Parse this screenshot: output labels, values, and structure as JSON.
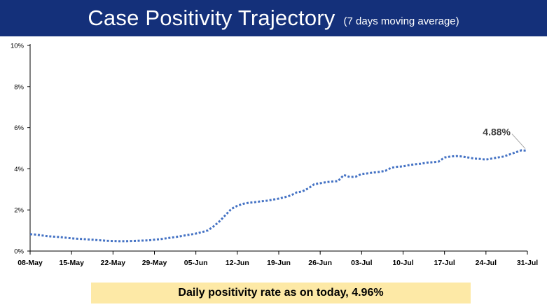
{
  "header": {
    "title": "Case Positivity Trajectory",
    "subtitle": "(7 days moving average)",
    "background_color": "#14307a"
  },
  "footer": {
    "banner_text": "Daily positivity rate as on today, 4.96%",
    "banner_color": "#fde9a6"
  },
  "chart_data": {
    "type": "line",
    "title": "Case Positivity Trajectory",
    "subtitle": "(7 days moving average)",
    "xlabel": "",
    "ylabel": "",
    "ylim": [
      0,
      10
    ],
    "y_ticks": [
      0,
      2,
      4,
      6,
      8,
      10
    ],
    "y_tick_labels": [
      "0%",
      "2%",
      "4%",
      "6%",
      "8%",
      "10%"
    ],
    "x_tick_labels": [
      "08-May",
      "15-May",
      "22-May",
      "29-May",
      "05-Jun",
      "12-Jun",
      "19-Jun",
      "26-Jun",
      "03-Jul",
      "10-Jul",
      "17-Jul",
      "24-Jul",
      "31-Jul"
    ],
    "x_tick_days": [
      0,
      7,
      14,
      21,
      28,
      35,
      42,
      49,
      56,
      63,
      70,
      77,
      84
    ],
    "grid": false,
    "line_color": "#4472c4",
    "line_style": "dotted",
    "annotation": {
      "text": "4.88%",
      "day": 84,
      "value": 4.88
    },
    "series": [
      {
        "name": "Case positivity (7 days moving average)",
        "x": [
          0,
          1,
          2,
          3,
          4,
          5,
          6,
          7,
          8,
          9,
          10,
          11,
          12,
          13,
          14,
          15,
          16,
          17,
          18,
          19,
          20,
          21,
          22,
          23,
          24,
          25,
          26,
          27,
          28,
          29,
          30,
          31,
          32,
          33,
          34,
          35,
          36,
          37,
          38,
          39,
          40,
          41,
          42,
          43,
          44,
          45,
          46,
          47,
          48,
          49,
          50,
          51,
          52,
          53,
          54,
          55,
          56,
          57,
          58,
          59,
          60,
          61,
          62,
          63,
          64,
          65,
          66,
          67,
          68,
          69,
          70,
          71,
          72,
          73,
          74,
          75,
          76,
          77,
          78,
          79,
          80,
          81,
          82,
          83,
          84
        ],
        "values": [
          0.82,
          0.8,
          0.76,
          0.72,
          0.7,
          0.68,
          0.65,
          0.62,
          0.6,
          0.58,
          0.56,
          0.54,
          0.52,
          0.5,
          0.49,
          0.48,
          0.48,
          0.49,
          0.5,
          0.51,
          0.52,
          0.55,
          0.58,
          0.62,
          0.66,
          0.7,
          0.75,
          0.8,
          0.85,
          0.92,
          1.0,
          1.2,
          1.45,
          1.75,
          2.05,
          2.2,
          2.3,
          2.35,
          2.38,
          2.42,
          2.45,
          2.5,
          2.55,
          2.62,
          2.7,
          2.85,
          2.9,
          3.05,
          3.25,
          3.3,
          3.35,
          3.38,
          3.4,
          3.7,
          3.6,
          3.62,
          3.75,
          3.78,
          3.82,
          3.85,
          3.9,
          4.05,
          4.1,
          4.12,
          4.18,
          4.22,
          4.25,
          4.3,
          4.32,
          4.35,
          4.55,
          4.6,
          4.62,
          4.6,
          4.55,
          4.5,
          4.48,
          4.45,
          4.5,
          4.55,
          4.6,
          4.7,
          4.8,
          4.9,
          4.88
        ]
      }
    ]
  }
}
